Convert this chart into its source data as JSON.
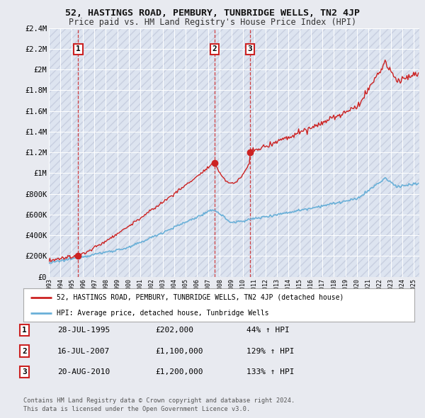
{
  "title": "52, HASTINGS ROAD, PEMBURY, TUNBRIDGE WELLS, TN2 4JP",
  "subtitle": "Price paid vs. HM Land Registry's House Price Index (HPI)",
  "sale_dates": [
    "1995-07-28",
    "2007-07-16",
    "2010-08-20"
  ],
  "sale_prices": [
    202000,
    1100000,
    1200000
  ],
  "sale_labels": [
    "1",
    "2",
    "3"
  ],
  "sale_year_floats": [
    1995.57,
    2007.54,
    2010.63
  ],
  "table_rows": [
    [
      "1",
      "28-JUL-1995",
      "£202,000",
      "44% ↑ HPI"
    ],
    [
      "2",
      "16-JUL-2007",
      "£1,100,000",
      "129% ↑ HPI"
    ],
    [
      "3",
      "20-AUG-2010",
      "£1,200,000",
      "133% ↑ HPI"
    ]
  ],
  "legend_line1": "52, HASTINGS ROAD, PEMBURY, TUNBRIDGE WELLS, TN2 4JP (detached house)",
  "legend_line2": "HPI: Average price, detached house, Tunbridge Wells",
  "footer_line1": "Contains HM Land Registry data © Crown copyright and database right 2024.",
  "footer_line2": "This data is licensed under the Open Government Licence v3.0.",
  "hpi_color": "#6ab0d8",
  "sale_color": "#cc2222",
  "background_color": "#e8eaf0",
  "plot_bg_color": "#dde4f0",
  "grid_color": "#ffffff",
  "hatch_color": "#c8cfe0",
  "ylim": [
    0,
    2400000
  ],
  "yticks": [
    0,
    200000,
    400000,
    600000,
    800000,
    1000000,
    1200000,
    1400000,
    1600000,
    1800000,
    2000000,
    2200000,
    2400000
  ],
  "ytick_labels": [
    "£0",
    "£200K",
    "£400K",
    "£600K",
    "£800K",
    "£1M",
    "£1.2M",
    "£1.4M",
    "£1.6M",
    "£1.8M",
    "£2M",
    "£2.2M",
    "£2.4M"
  ],
  "xlim_start": 1993.0,
  "xlim_end": 2025.5,
  "xticks": [
    1993,
    1994,
    1995,
    1996,
    1997,
    1998,
    1999,
    2000,
    2001,
    2002,
    2003,
    2004,
    2005,
    2006,
    2007,
    2008,
    2009,
    2010,
    2011,
    2012,
    2013,
    2014,
    2015,
    2016,
    2017,
    2018,
    2019,
    2020,
    2021,
    2022,
    2023,
    2024,
    2025
  ]
}
